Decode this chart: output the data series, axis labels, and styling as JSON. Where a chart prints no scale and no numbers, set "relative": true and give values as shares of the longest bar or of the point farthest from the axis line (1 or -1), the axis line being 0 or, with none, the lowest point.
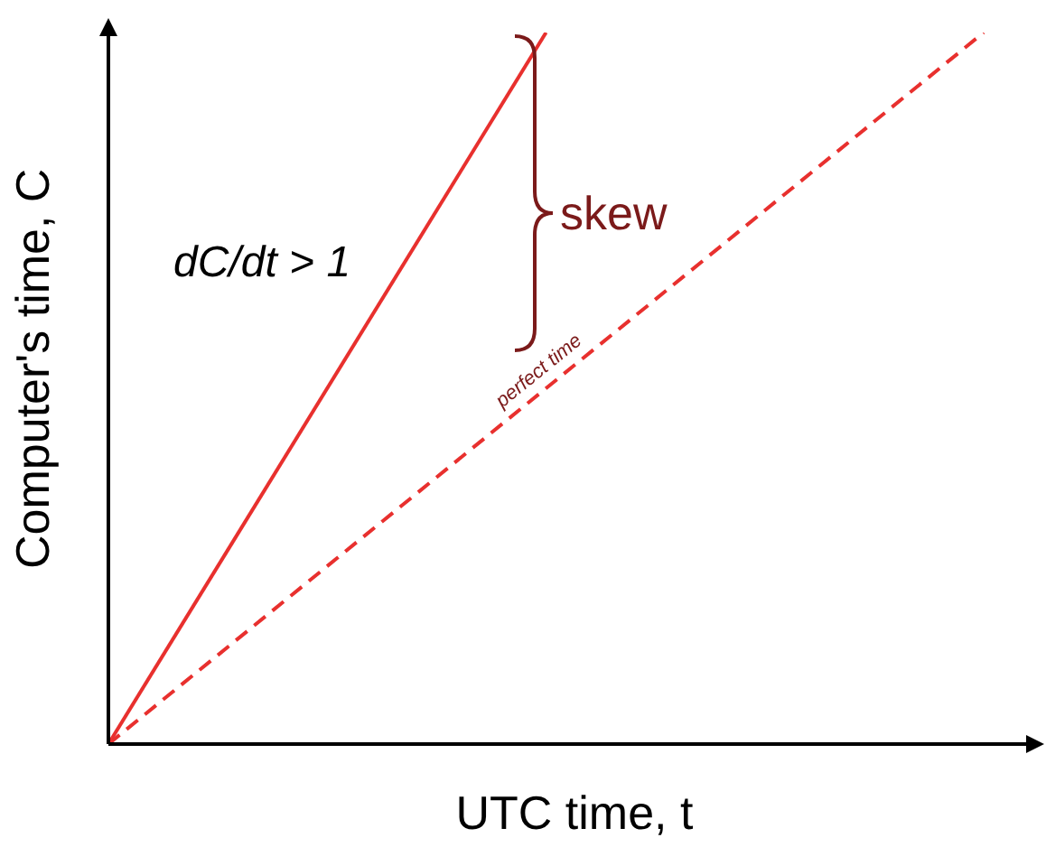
{
  "chart_data": {
    "type": "line",
    "relative": true,
    "xlabel": "UTC time, t",
    "ylabel": "Computer's time, C",
    "categories": [
      null,
      null,
      null
    ],
    "series": [
      {
        "color": "#e8302e",
        "values": [
          0,
          1,
          null
        ],
        "line_style": "solid"
      },
      {
        "color": "#e8302e",
        "values": [
          0,
          0.5,
          1
        ],
        "line_style": "dashed"
      }
    ],
    "annotations": [
      "dC/dt > 1",
      "skew",
      "perfect time"
    ],
    "marker": "none",
    "grid": false,
    "legend": false,
    "tick_labels": false
  }
}
